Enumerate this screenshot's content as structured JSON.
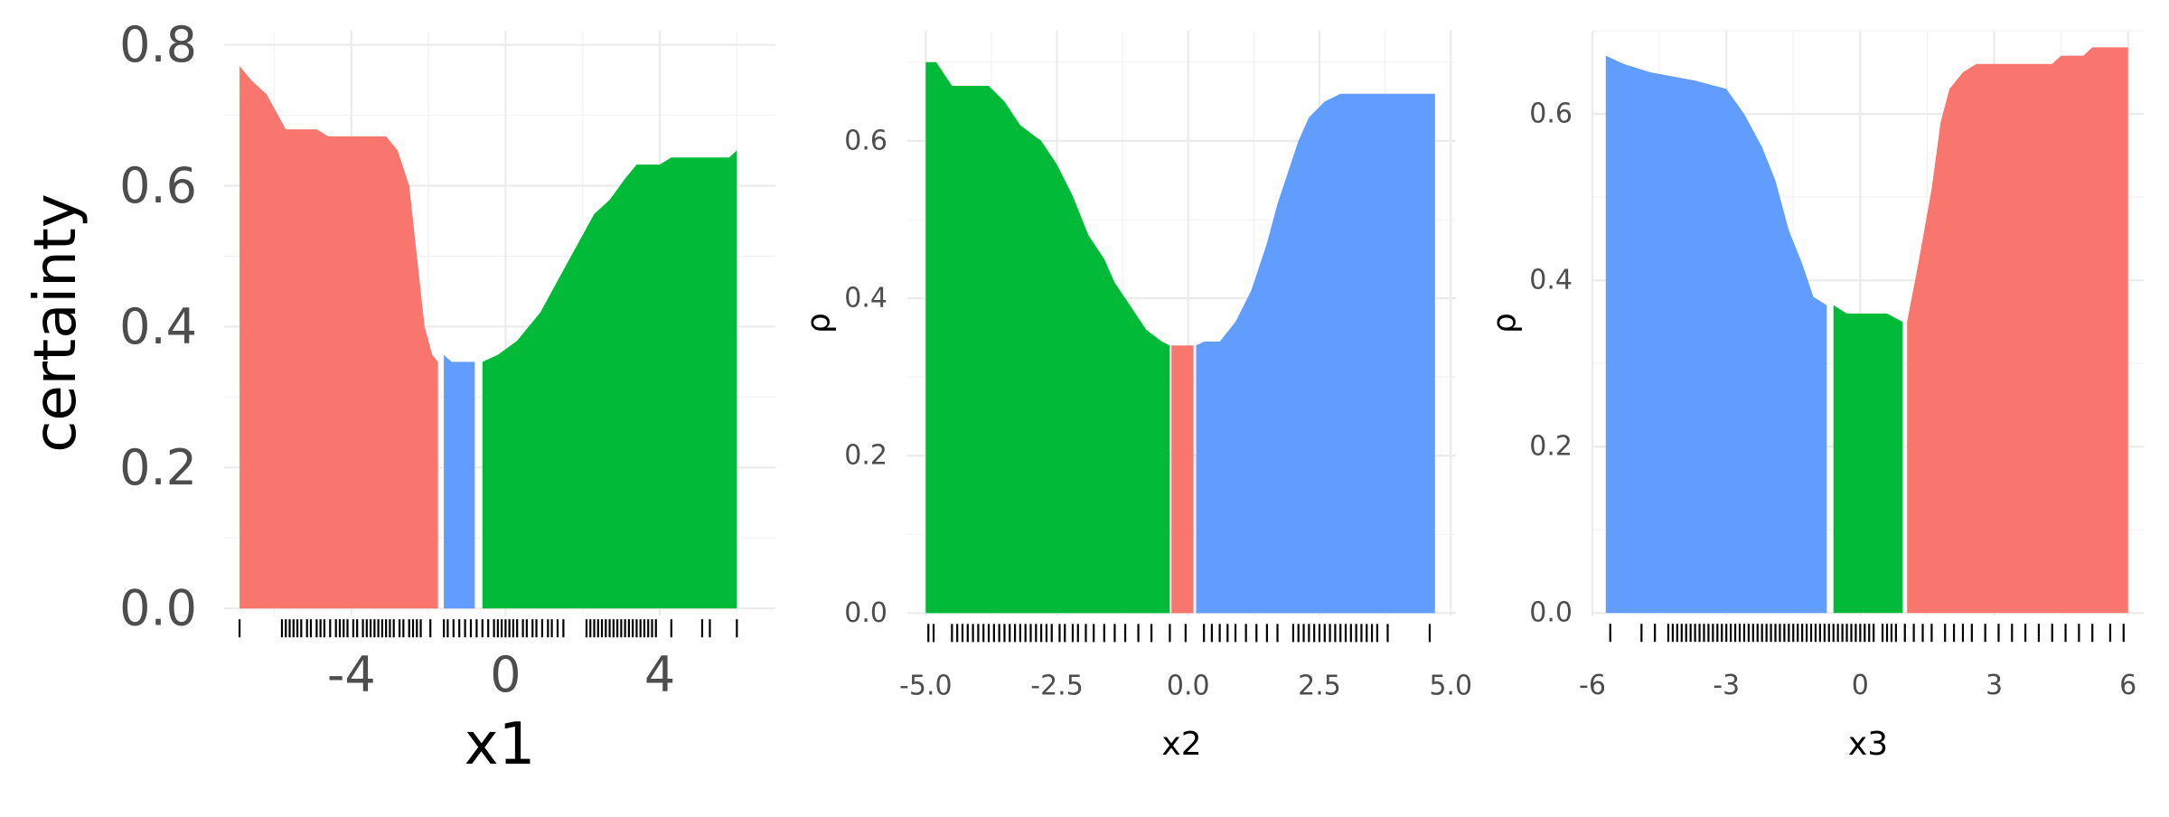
{
  "colors": {
    "red": "#F8766D",
    "green": "#00BA38",
    "blue": "#619CFF",
    "grid": "#EBEBEB",
    "tick_text": "#4D4D4D"
  },
  "chart_data": [
    {
      "type": "area",
      "xlabel": "x1",
      "ylabel": "certainty",
      "xlim": [
        -7.3,
        7.0
      ],
      "ylim": [
        -0.01,
        0.82
      ],
      "xticks": [
        -4,
        0,
        4
      ],
      "xtick_labels": [
        "-4",
        "0",
        "4"
      ],
      "yticks": [
        0.0,
        0.2,
        0.4,
        0.6,
        0.8
      ],
      "ytick_labels": [
        "0.0",
        "0.2",
        "0.4",
        "0.6",
        "0.8"
      ],
      "grid": true,
      "legend": "none",
      "segments": [
        {
          "color": "red",
          "points": [
            [
              -6.9,
              0.77
            ],
            [
              -6.6,
              0.75
            ],
            [
              -6.2,
              0.73
            ],
            [
              -5.9,
              0.7
            ],
            [
              -5.7,
              0.68
            ],
            [
              -4.9,
              0.68
            ],
            [
              -4.6,
              0.67
            ],
            [
              -3.1,
              0.67
            ],
            [
              -2.8,
              0.65
            ],
            [
              -2.5,
              0.6
            ],
            [
              -2.3,
              0.5
            ],
            [
              -2.1,
              0.4
            ],
            [
              -1.9,
              0.36
            ],
            [
              -1.75,
              0.35
            ]
          ]
        },
        {
          "color": "blue",
          "points": [
            [
              -1.6,
              0.36
            ],
            [
              -1.4,
              0.35
            ],
            [
              -0.8,
              0.35
            ]
          ]
        },
        {
          "color": "green",
          "points": [
            [
              -0.6,
              0.35
            ],
            [
              -0.2,
              0.36
            ],
            [
              0.3,
              0.38
            ],
            [
              0.9,
              0.42
            ],
            [
              1.4,
              0.47
            ],
            [
              1.9,
              0.52
            ],
            [
              2.3,
              0.56
            ],
            [
              2.7,
              0.58
            ],
            [
              3.1,
              0.61
            ],
            [
              3.4,
              0.63
            ],
            [
              4.0,
              0.63
            ],
            [
              4.3,
              0.64
            ],
            [
              5.8,
              0.64
            ],
            [
              6.0,
              0.65
            ]
          ]
        }
      ],
      "rug_x": [
        -6.9,
        -5.8,
        -5.7,
        -5.6,
        -5.5,
        -5.4,
        -5.3,
        -5.15,
        -5.05,
        -4.9,
        -4.8,
        -4.7,
        -4.55,
        -4.4,
        -4.3,
        -4.2,
        -4.1,
        -3.95,
        -3.85,
        -3.7,
        -3.6,
        -3.5,
        -3.4,
        -3.3,
        -3.2,
        -3.1,
        -3.0,
        -2.9,
        -2.75,
        -2.65,
        -2.5,
        -2.4,
        -2.3,
        -2.2,
        -1.95,
        -1.6,
        -1.5,
        -1.35,
        -1.2,
        -1.05,
        -0.9,
        -0.75,
        -0.6,
        -0.45,
        -0.3,
        -0.2,
        -0.1,
        0.0,
        0.1,
        0.2,
        0.3,
        0.45,
        0.55,
        0.7,
        0.8,
        0.95,
        1.1,
        1.2,
        1.35,
        1.5,
        2.1,
        2.2,
        2.3,
        2.4,
        2.5,
        2.6,
        2.7,
        2.8,
        2.9,
        3.0,
        3.1,
        3.2,
        3.3,
        3.4,
        3.5,
        3.6,
        3.7,
        3.8,
        3.9,
        4.3,
        5.1,
        5.3,
        6.0
      ]
    },
    {
      "type": "area",
      "xlabel": "x2",
      "ylabel": "ρ",
      "xlim": [
        -5.35,
        5.1
      ],
      "ylim": [
        -0.003,
        0.74
      ],
      "xticks": [
        -5.0,
        -2.5,
        0.0,
        2.5,
        5.0
      ],
      "xtick_labels": [
        "-5.0",
        "-2.5",
        "0.0",
        "2.5",
        "5.0"
      ],
      "yticks": [
        0.0,
        0.2,
        0.4,
        0.6
      ],
      "ytick_labels": [
        "0.0",
        "0.2",
        "0.4",
        "0.6"
      ],
      "grid": true,
      "legend": "none",
      "segments": [
        {
          "color": "green",
          "points": [
            [
              -5.0,
              0.7
            ],
            [
              -4.8,
              0.7
            ],
            [
              -4.5,
              0.67
            ],
            [
              -3.8,
              0.67
            ],
            [
              -3.5,
              0.65
            ],
            [
              -3.2,
              0.62
            ],
            [
              -2.8,
              0.6
            ],
            [
              -2.5,
              0.57
            ],
            [
              -2.2,
              0.53
            ],
            [
              -1.9,
              0.48
            ],
            [
              -1.6,
              0.45
            ],
            [
              -1.4,
              0.42
            ],
            [
              -1.1,
              0.39
            ],
            [
              -0.8,
              0.36
            ],
            [
              -0.5,
              0.345
            ],
            [
              -0.35,
              0.34
            ]
          ]
        },
        {
          "color": "red",
          "points": [
            [
              -0.32,
              0.34
            ],
            [
              0.1,
              0.34
            ]
          ]
        },
        {
          "color": "blue",
          "points": [
            [
              0.15,
              0.34
            ],
            [
              0.3,
              0.345
            ],
            [
              0.6,
              0.345
            ],
            [
              0.9,
              0.37
            ],
            [
              1.2,
              0.41
            ],
            [
              1.5,
              0.47
            ],
            [
              1.7,
              0.52
            ],
            [
              1.9,
              0.56
            ],
            [
              2.1,
              0.6
            ],
            [
              2.3,
              0.63
            ],
            [
              2.6,
              0.65
            ],
            [
              2.9,
              0.66
            ],
            [
              4.7,
              0.66
            ]
          ]
        }
      ],
      "rug_x": [
        -4.95,
        -4.85,
        -4.5,
        -4.4,
        -4.3,
        -4.2,
        -4.1,
        -4.0,
        -3.9,
        -3.8,
        -3.7,
        -3.6,
        -3.5,
        -3.4,
        -3.3,
        -3.2,
        -3.1,
        -3.0,
        -2.9,
        -2.8,
        -2.7,
        -2.6,
        -2.45,
        -2.35,
        -2.2,
        -2.1,
        -1.95,
        -1.8,
        -1.6,
        -1.4,
        -1.2,
        -0.95,
        -0.7,
        -0.35,
        -0.05,
        0.3,
        0.45,
        0.6,
        0.75,
        0.9,
        1.1,
        1.3,
        1.5,
        1.7,
        2.0,
        2.1,
        2.2,
        2.3,
        2.4,
        2.5,
        2.6,
        2.7,
        2.8,
        2.9,
        3.0,
        3.1,
        3.2,
        3.3,
        3.4,
        3.5,
        3.6,
        3.8,
        4.6
      ]
    },
    {
      "type": "area",
      "xlabel": "x3",
      "ylabel": "ρ",
      "xlim": [
        -6.0,
        6.35
      ],
      "ylim": [
        -0.003,
        0.7
      ],
      "xticks": [
        -6,
        -3,
        0,
        3,
        6
      ],
      "xtick_labels": [
        "-6",
        "-3",
        "0",
        "3",
        "6"
      ],
      "yticks": [
        0.0,
        0.2,
        0.4,
        0.6
      ],
      "ytick_labels": [
        "0.0",
        "0.2",
        "0.4",
        "0.6"
      ],
      "grid": true,
      "legend": "none",
      "segments": [
        {
          "color": "blue",
          "points": [
            [
              -5.7,
              0.67
            ],
            [
              -5.3,
              0.66
            ],
            [
              -4.7,
              0.65
            ],
            [
              -3.7,
              0.64
            ],
            [
              -3.0,
              0.63
            ],
            [
              -2.6,
              0.6
            ],
            [
              -2.2,
              0.56
            ],
            [
              -1.9,
              0.52
            ],
            [
              -1.6,
              0.46
            ],
            [
              -1.3,
              0.42
            ],
            [
              -1.05,
              0.38
            ],
            [
              -0.75,
              0.37
            ]
          ]
        },
        {
          "color": "green",
          "points": [
            [
              -0.6,
              0.37
            ],
            [
              -0.3,
              0.36
            ],
            [
              0.6,
              0.36
            ],
            [
              0.95,
              0.35
            ]
          ]
        },
        {
          "color": "red",
          "points": [
            [
              1.05,
              0.35
            ],
            [
              1.3,
              0.42
            ],
            [
              1.6,
              0.51
            ],
            [
              1.8,
              0.59
            ],
            [
              2.0,
              0.63
            ],
            [
              2.3,
              0.65
            ],
            [
              2.6,
              0.66
            ],
            [
              4.3,
              0.66
            ],
            [
              4.5,
              0.67
            ],
            [
              5.0,
              0.67
            ],
            [
              5.2,
              0.68
            ],
            [
              6.0,
              0.68
            ]
          ]
        }
      ],
      "rug_x": [
        -5.6,
        -4.9,
        -4.6,
        -4.3,
        -4.2,
        -4.1,
        -4.0,
        -3.9,
        -3.8,
        -3.7,
        -3.6,
        -3.5,
        -3.4,
        -3.3,
        -3.2,
        -3.1,
        -3.0,
        -2.9,
        -2.8,
        -2.7,
        -2.6,
        -2.5,
        -2.4,
        -2.3,
        -2.2,
        -2.1,
        -2.0,
        -1.9,
        -1.8,
        -1.7,
        -1.6,
        -1.5,
        -1.4,
        -1.3,
        -1.2,
        -1.1,
        -1.0,
        -0.9,
        -0.8,
        -0.7,
        -0.6,
        -0.5,
        -0.4,
        -0.3,
        -0.2,
        -0.1,
        0.0,
        0.1,
        0.2,
        0.3,
        0.5,
        0.6,
        0.7,
        0.8,
        1.0,
        1.2,
        1.4,
        1.6,
        1.9,
        2.1,
        2.3,
        2.5,
        2.8,
        3.1,
        3.4,
        3.7,
        4.0,
        4.3,
        4.6,
        4.9,
        5.2,
        5.6,
        5.9
      ]
    }
  ]
}
